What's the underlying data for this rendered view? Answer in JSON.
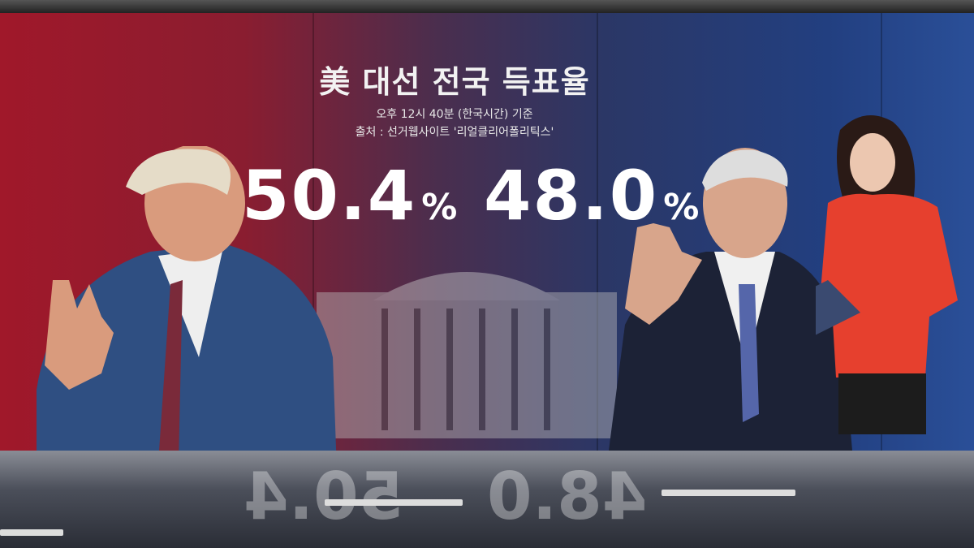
{
  "graphic": {
    "title": "美 대선 전국 득표율",
    "timestamp": "오후 12시 40분 (한국시간) 기준",
    "source": "출처 : 선거웹사이트 '리얼클리어폴리틱스'",
    "left_value": "50.4",
    "right_value": "48.0",
    "unit": "%"
  },
  "colors": {
    "left_side": "#a0182a",
    "right_side": "#2a4f98"
  }
}
